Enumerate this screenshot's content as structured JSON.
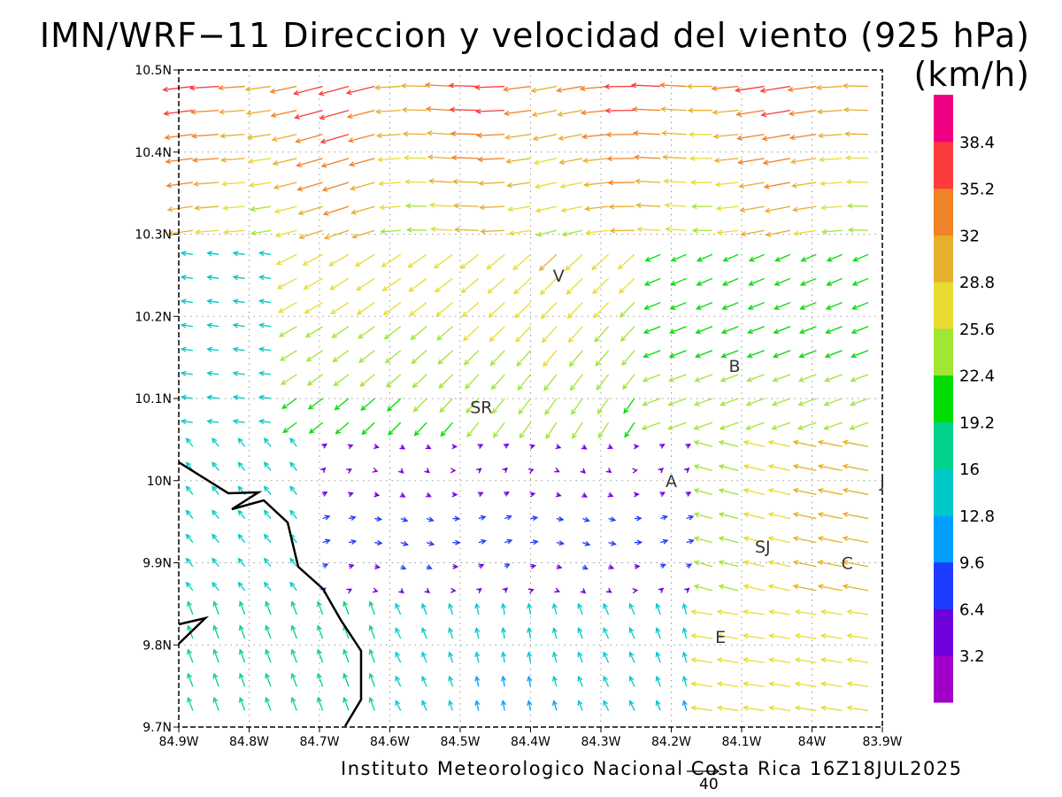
{
  "title": "IMN/WRF−11 Direccion y velocidad del viento (925 hPa)(km/h)",
  "credit": "Instituto Meteorologico Nacional Costa Rica 16Z18JUL2025",
  "scale_vector_label": "40",
  "chart_data": {
    "type": "vector-field",
    "lon_range": [
      -84.9,
      -83.9
    ],
    "lat_range": [
      9.7,
      10.5
    ],
    "x_tick_labels": [
      "84.9W",
      "84.8W",
      "84.7W",
      "84.6W",
      "84.5W",
      "84.4W",
      "84.3W",
      "84.2W",
      "84.1W",
      "84W",
      "83.9W"
    ],
    "y_tick_labels": [
      "9.7N",
      "9.8N",
      "9.9N",
      "10N",
      "10.1N",
      "10.2N",
      "10.3N",
      "10.4N",
      "10.5N"
    ],
    "grid": "dotted",
    "reference_vector_kmh": 40,
    "colorbar": {
      "labels": [
        "3.2",
        "6.4",
        "9.6",
        "12.8",
        "16",
        "19.2",
        "22.4",
        "25.6",
        "28.8",
        "32",
        "35.2",
        "38.4"
      ],
      "colors": [
        "#a000c8",
        "#6e00dc",
        "#1e3cff",
        "#00a0ff",
        "#00c8c8",
        "#00d28c",
        "#00dc00",
        "#a0e632",
        "#e6dc32",
        "#e6af2d",
        "#f08228",
        "#fa3c3c",
        "#f00082"
      ]
    },
    "places": [
      {
        "name": "V",
        "lon": -84.36,
        "lat": 10.25
      },
      {
        "name": "B",
        "lon": -84.11,
        "lat": 10.14
      },
      {
        "name": "SR",
        "lon": -84.47,
        "lat": 10.09
      },
      {
        "name": "A",
        "lon": -84.2,
        "lat": 10.0
      },
      {
        "name": "J",
        "lon": -83.9,
        "lat": 10.0
      },
      {
        "name": "SJ",
        "lon": -84.07,
        "lat": 9.92
      },
      {
        "name": "C",
        "lon": -83.95,
        "lat": 9.9
      },
      {
        "name": "E",
        "lon": -84.13,
        "lat": 9.81
      }
    ]
  }
}
